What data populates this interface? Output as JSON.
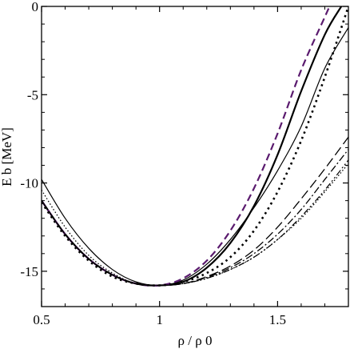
{
  "chart_data": {
    "type": "line",
    "title": "",
    "xlabel": "ρ / ρ 0",
    "ylabel": "E b [MeV]",
    "xlim": [
      0.5,
      1.8
    ],
    "ylim": [
      -17,
      0
    ],
    "grid": false,
    "legend": "none",
    "x_ticks": [
      0.5,
      1,
      1.5
    ],
    "x_tick_labels": [
      "0.5",
      "1",
      "1.5"
    ],
    "y_ticks": [
      0,
      -5,
      -10,
      -15
    ],
    "y_tick_labels": [
      "0",
      "-5",
      "-10",
      "-15"
    ],
    "series": [
      {
        "style": "thin-solid",
        "color": "#000000",
        "x": [
          0.5,
          0.6,
          0.7,
          0.8,
          0.9,
          1.0,
          1.1,
          1.2,
          1.3,
          1.4,
          1.5,
          1.6,
          1.7,
          1.8
        ],
        "y": [
          -9.8,
          -12.0,
          -13.7,
          -14.9,
          -15.6,
          -15.8,
          -15.5,
          -14.6,
          -13.2,
          -11.4,
          -9.3,
          -6.8,
          -3.5,
          -1.2
        ]
      },
      {
        "style": "thick-solid",
        "color": "#000000",
        "x": [
          0.5,
          0.6,
          0.7,
          0.8,
          0.9,
          1.0,
          1.1,
          1.2,
          1.3,
          1.4,
          1.5,
          1.6,
          1.7,
          1.77
        ],
        "y": [
          -11.0,
          -12.9,
          -14.3,
          -15.2,
          -15.7,
          -15.8,
          -15.6,
          -14.8,
          -13.4,
          -11.3,
          -8.4,
          -4.8,
          -1.6,
          0.0
        ]
      },
      {
        "style": "dashed-purple",
        "color": "#5a1a6e",
        "x": [
          0.5,
          0.6,
          0.7,
          0.8,
          0.9,
          1.0,
          1.1,
          1.2,
          1.3,
          1.4,
          1.5,
          1.6,
          1.7,
          1.72
        ],
        "y": [
          -11.0,
          -12.9,
          -14.3,
          -15.2,
          -15.7,
          -15.8,
          -15.4,
          -14.4,
          -12.7,
          -10.3,
          -7.2,
          -3.6,
          -0.6,
          0.0
        ]
      },
      {
        "style": "dotted-thick",
        "color": "#000000",
        "x": [
          0.5,
          0.6,
          0.7,
          0.8,
          0.9,
          1.0,
          1.1,
          1.2,
          1.3,
          1.4,
          1.5,
          1.6,
          1.7,
          1.8
        ],
        "y": [
          -11.1,
          -13.0,
          -14.4,
          -15.3,
          -15.7,
          -15.8,
          -15.6,
          -15.1,
          -14.2,
          -12.7,
          -10.5,
          -7.6,
          -4.0,
          0.0
        ]
      },
      {
        "style": "long-dash",
        "color": "#000000",
        "x": [
          0.5,
          0.6,
          0.7,
          0.8,
          0.9,
          1.0,
          1.1,
          1.2,
          1.3,
          1.4,
          1.5,
          1.6,
          1.7,
          1.8
        ],
        "y": [
          -11.0,
          -12.9,
          -14.3,
          -15.2,
          -15.7,
          -15.8,
          -15.7,
          -15.3,
          -14.7,
          -13.8,
          -12.5,
          -10.9,
          -9.2,
          -7.4
        ]
      },
      {
        "style": "dash-dot",
        "color": "#000000",
        "x": [
          0.5,
          0.6,
          0.7,
          0.8,
          0.9,
          1.0,
          1.1,
          1.2,
          1.3,
          1.4,
          1.5,
          1.6,
          1.7,
          1.8
        ],
        "y": [
          -11.0,
          -12.9,
          -14.3,
          -15.2,
          -15.7,
          -15.8,
          -15.7,
          -15.35,
          -14.8,
          -14.0,
          -12.9,
          -11.5,
          -9.8,
          -8.1
        ]
      },
      {
        "style": "dash-dot-dot",
        "color": "#000000",
        "x": [
          0.5,
          0.6,
          0.7,
          0.8,
          0.9,
          1.0,
          1.1,
          1.2,
          1.3,
          1.4,
          1.5,
          1.6,
          1.7,
          1.8
        ],
        "y": [
          -11.0,
          -12.9,
          -14.3,
          -15.2,
          -15.7,
          -15.8,
          -15.7,
          -15.4,
          -14.9,
          -14.2,
          -13.2,
          -11.9,
          -10.4,
          -8.7
        ]
      },
      {
        "style": "fine-dotted",
        "color": "#000000",
        "x": [
          0.5,
          0.6,
          0.7,
          0.8,
          0.9,
          1.0,
          1.1,
          1.2,
          1.3,
          1.4,
          1.5,
          1.6,
          1.7,
          1.8
        ],
        "y": [
          -10.4,
          -12.5,
          -14.1,
          -15.1,
          -15.7,
          -15.8,
          -15.7,
          -15.4,
          -14.9,
          -14.2,
          -13.2,
          -12.0,
          -10.5,
          -8.9
        ]
      }
    ]
  }
}
